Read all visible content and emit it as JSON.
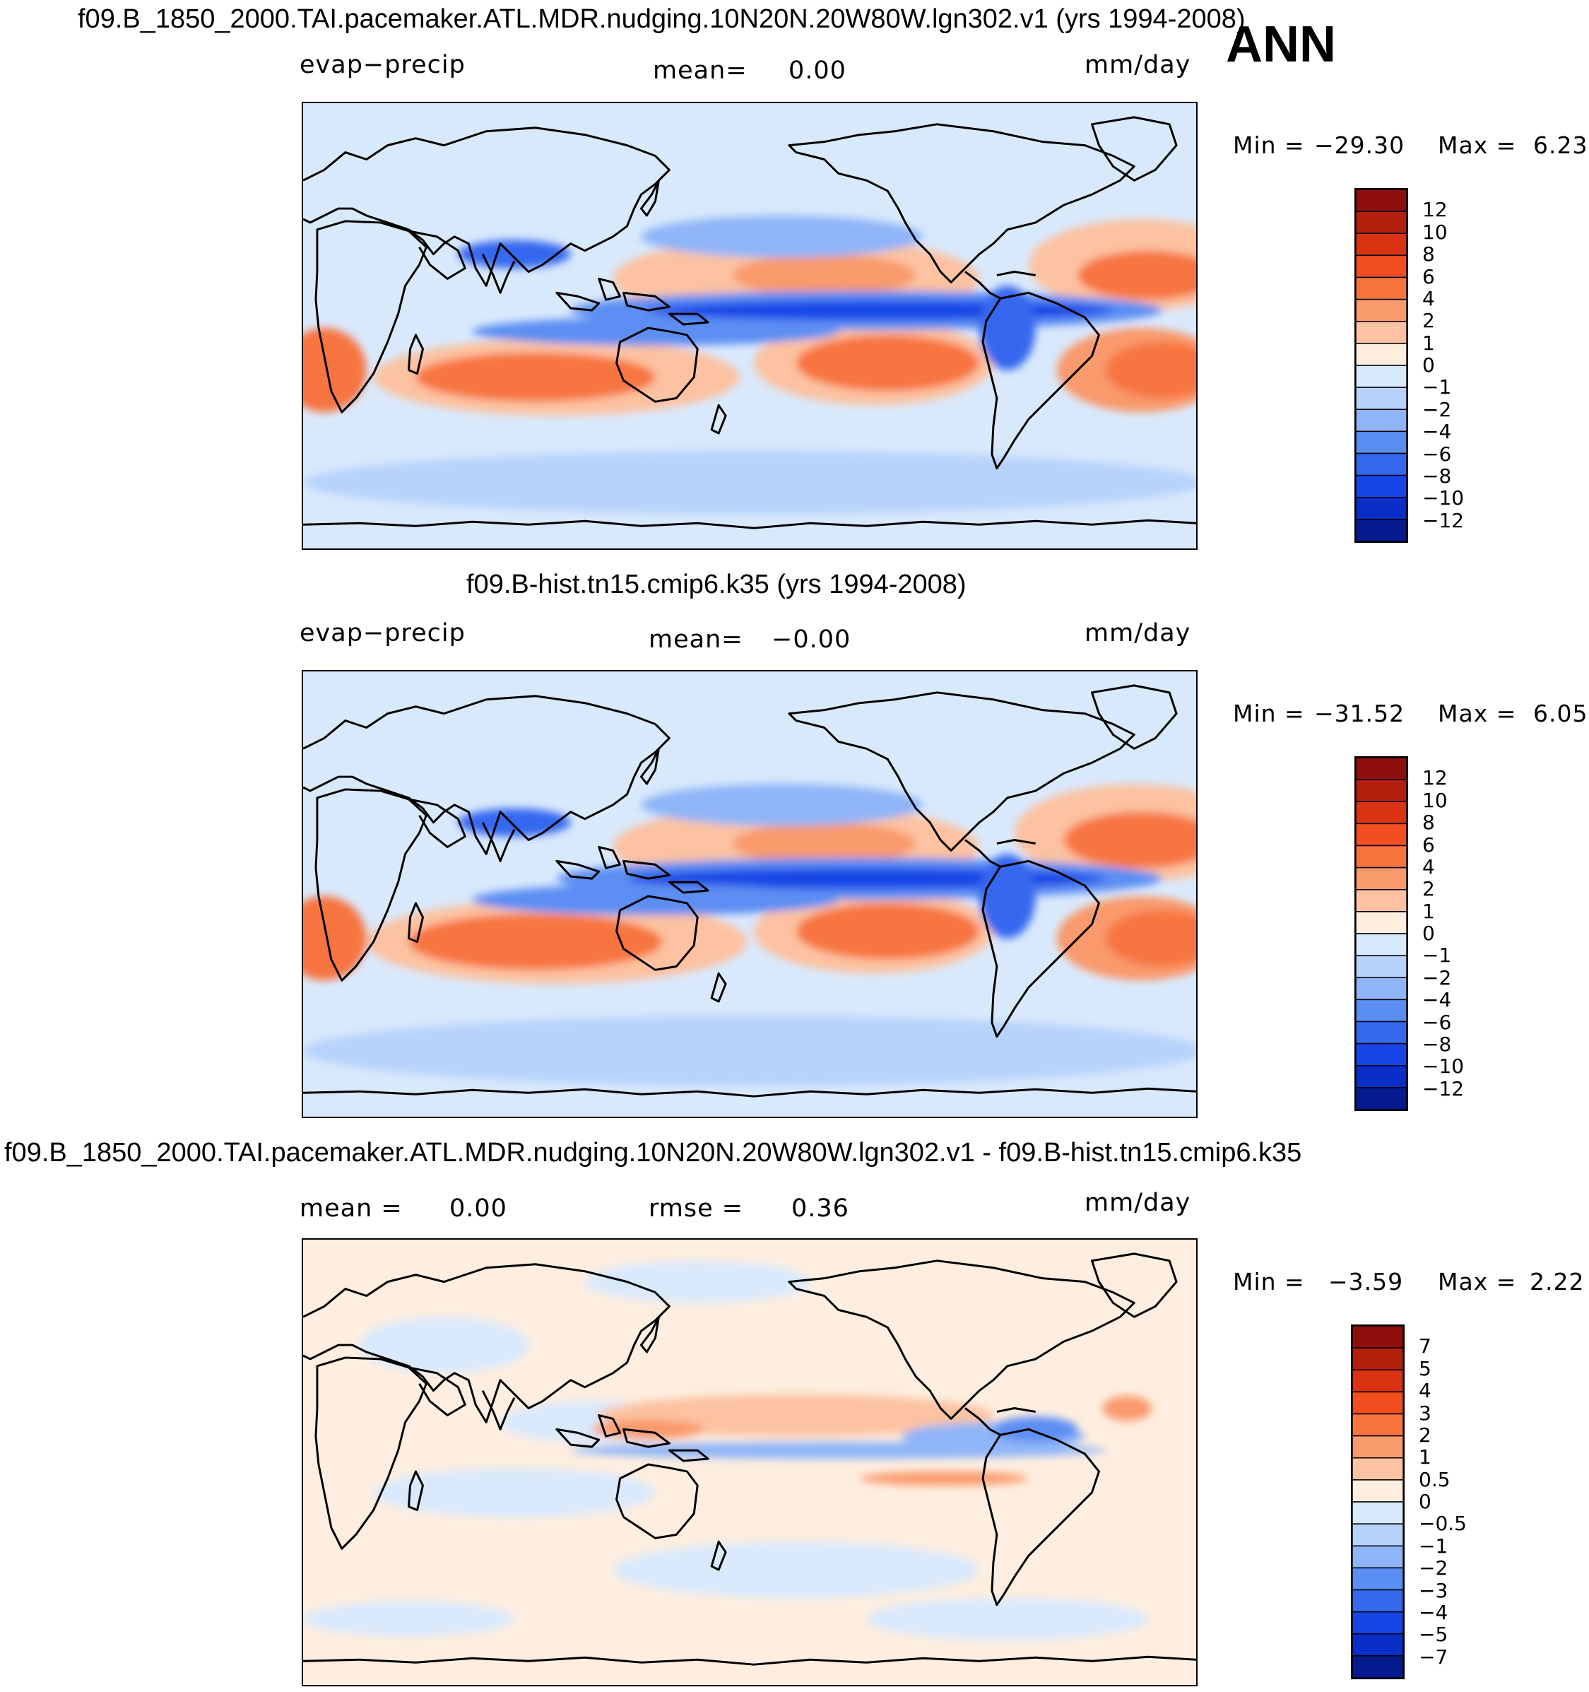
{
  "season": "ANN",
  "panels": [
    {
      "id": "case",
      "title": "f09.B_1850_2000.TAI.pacemaker.ATL.MDR.nudging.10N20N.20W80W.lgn302.v1 (yrs 1994-2008)",
      "variable": "evap−precip",
      "mean_label": "mean=",
      "mean_value": "0.00",
      "units": "mm/day",
      "min_label": "Min  =",
      "min_value": "−29.30",
      "max_label": "Max  =",
      "max_value": "6.23",
      "colorbar": {
        "labels": [
          "12",
          "10",
          "8",
          "6",
          "4",
          "2",
          "1",
          "0",
          "−1",
          "−2",
          "−4",
          "−6",
          "−8",
          "−10",
          "−12"
        ],
        "colors": [
          "#8e0e0b",
          "#b41f0d",
          "#d93314",
          "#f24e20",
          "#f7743f",
          "#f99a6c",
          "#fcc2a1",
          "#feeee0",
          "#d9e9fc",
          "#b7d3fb",
          "#8fb5f8",
          "#5b8ef3",
          "#3468ef",
          "#1746e6",
          "#0a2ec8",
          "#051a8f"
        ]
      }
    },
    {
      "id": "control",
      "title": "f09.B-hist.tn15.cmip6.k35 (yrs 1994-2008)",
      "variable": "evap−precip",
      "mean_label": "mean=",
      "mean_value": "−0.00",
      "units": "mm/day",
      "min_label": "Min  =",
      "min_value": "−31.52",
      "max_label": "Max  =",
      "max_value": "6.05",
      "colorbar": {
        "labels": [
          "12",
          "10",
          "8",
          "6",
          "4",
          "2",
          "1",
          "0",
          "−1",
          "−2",
          "−4",
          "−6",
          "−8",
          "−10",
          "−12"
        ],
        "colors": [
          "#8e0e0b",
          "#b41f0d",
          "#d93314",
          "#f24e20",
          "#f7743f",
          "#f99a6c",
          "#fcc2a1",
          "#feeee0",
          "#d9e9fc",
          "#b7d3fb",
          "#8fb5f8",
          "#5b8ef3",
          "#3468ef",
          "#1746e6",
          "#0a2ec8",
          "#051a8f"
        ]
      }
    },
    {
      "id": "difference",
      "title": "f09.B_1850_2000.TAI.pacemaker.ATL.MDR.nudging.10N20N.20W80W.lgn302.v1 - f09.B-hist.tn15.cmip6.k35",
      "mean_label": "mean  =",
      "mean_value": "0.00",
      "rmse_label": "rmse  =",
      "rmse_value": "0.36",
      "units": "mm/day",
      "min_label": "Min  =",
      "min_value": "−3.59",
      "max_label": "Max  =",
      "max_value": "2.22",
      "colorbar": {
        "labels": [
          "7",
          "5",
          "4",
          "3",
          "2",
          "1",
          "0.5",
          "0",
          "−0.5",
          "−1",
          "−2",
          "−3",
          "−4",
          "−5",
          "−7"
        ],
        "colors": [
          "#8e0e0b",
          "#b41f0d",
          "#d93314",
          "#f24e20",
          "#f7743f",
          "#f99a6c",
          "#fcc2a1",
          "#feeee0",
          "#d9e9fc",
          "#b7d3fb",
          "#8fb5f8",
          "#5b8ef3",
          "#3468ef",
          "#1746e6",
          "#0a2ec8",
          "#051a8f"
        ]
      }
    }
  ]
}
